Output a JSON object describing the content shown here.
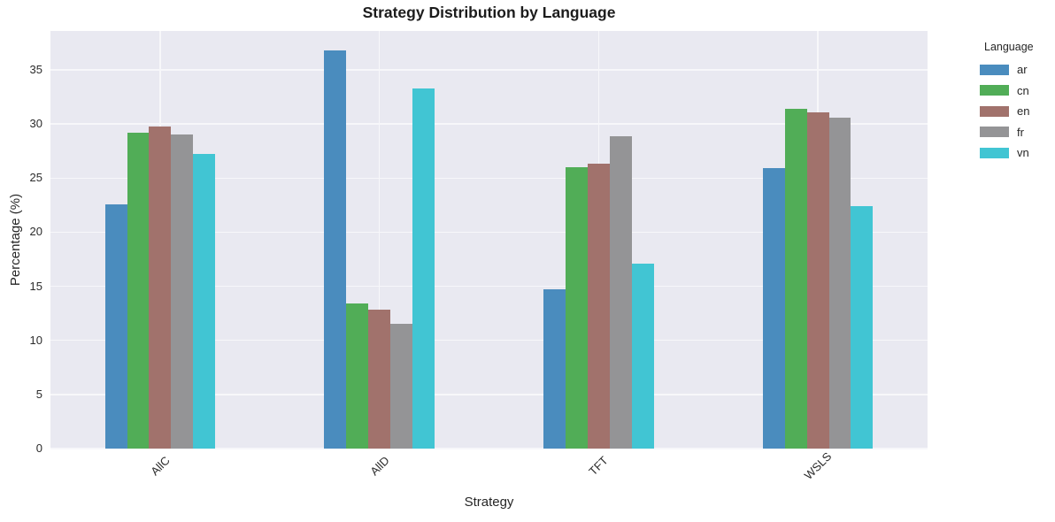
{
  "chart_data": {
    "type": "bar",
    "title": "Strategy Distribution by Language",
    "xlabel": "Strategy",
    "ylabel": "Percentage (%)",
    "categories": [
      "AllC",
      "AllD",
      "TFT",
      "WSLS"
    ],
    "series": [
      {
        "name": "ar",
        "color": "#4a8cbe",
        "values": [
          22.6,
          36.8,
          14.7,
          25.9
        ]
      },
      {
        "name": "cn",
        "color": "#51ad57",
        "values": [
          29.2,
          13.4,
          26.0,
          31.4
        ]
      },
      {
        "name": "en",
        "color": "#a1726c",
        "values": [
          29.8,
          12.8,
          26.3,
          31.1
        ]
      },
      {
        "name": "fr",
        "color": "#949496",
        "values": [
          29.0,
          11.5,
          28.9,
          30.6
        ]
      },
      {
        "name": "vn",
        "color": "#41c5d3",
        "values": [
          27.2,
          33.3,
          17.1,
          22.4
        ]
      }
    ],
    "ylim": [
      0,
      38.6
    ],
    "yticks": [
      0,
      5,
      10,
      15,
      20,
      25,
      30,
      35
    ],
    "grid": true,
    "legend": {
      "title": "Language",
      "position": "outside-upper-right"
    },
    "style": {
      "plot_background": "#e9e9f1",
      "grid_color": "#f7f7fa",
      "text_color": "#262626"
    }
  }
}
